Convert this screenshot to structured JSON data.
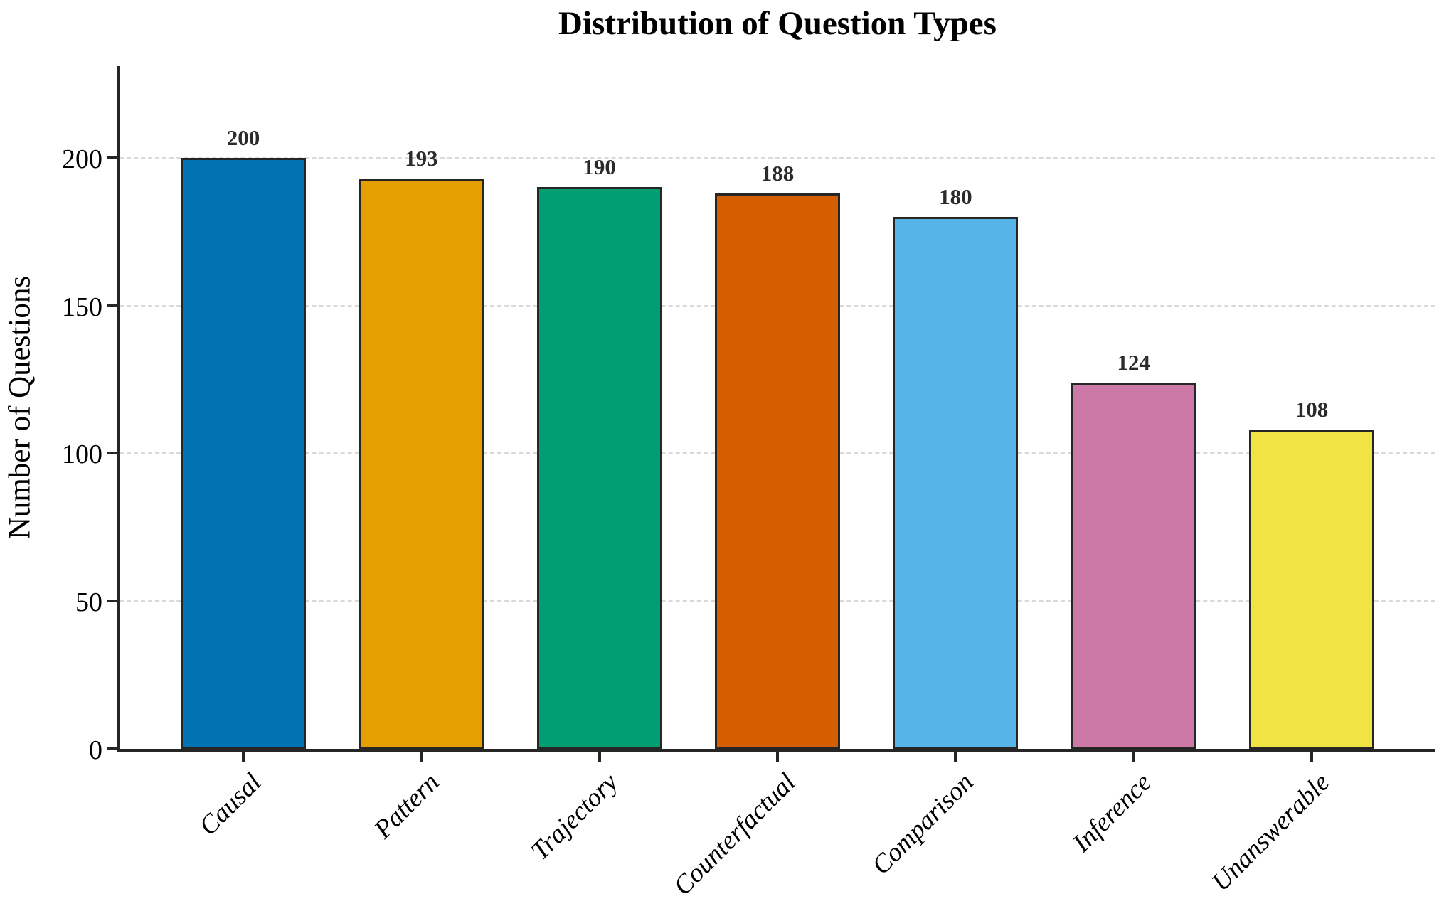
{
  "chart_data": {
    "type": "bar",
    "title": "Distribution of Question Types",
    "xlabel": "",
    "ylabel": "Number of Questions",
    "categories": [
      "Causal",
      "Pattern",
      "Trajectory",
      "Counterfactual",
      "Comparison",
      "Inference",
      "Unanswerable"
    ],
    "values": [
      200,
      193,
      190,
      188,
      180,
      124,
      108
    ],
    "bar_colors": [
      "#0173b2",
      "#e69f00",
      "#029e73",
      "#d55e00",
      "#56b4e9",
      "#cc79a7",
      "#f0e442"
    ],
    "bar_edge_color": "#262626",
    "yticks": [
      0,
      50,
      100,
      150,
      200
    ],
    "ylim": [
      0,
      231
    ],
    "grid": {
      "axis": "y",
      "style": "dashed",
      "color": "#d9d9d9"
    },
    "legend": "none",
    "background": "#ffffff",
    "value_labels_shown": true
  }
}
